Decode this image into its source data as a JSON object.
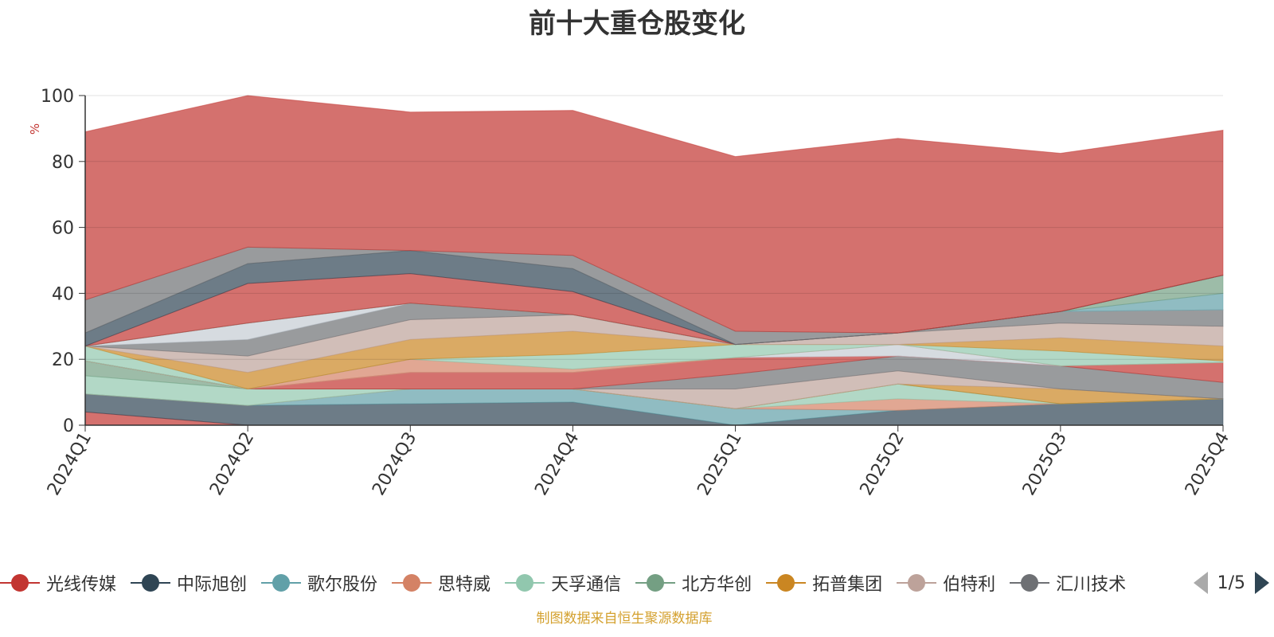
{
  "title": "前十大重仓股变化",
  "source_note": "制图数据来自恒生聚源数据库",
  "pager": {
    "text": "1/5"
  },
  "chart_data": {
    "type": "area",
    "stacked": true,
    "ylabel": "%",
    "ylim": [
      0,
      100
    ],
    "yticks": [
      "0",
      "20",
      "40",
      "60",
      "80",
      "100"
    ],
    "grid": true,
    "legend_position": "bottom",
    "categories": [
      "2024Q1",
      "2024Q2",
      "2024Q3",
      "2024Q4",
      "2025Q1",
      "2025Q2",
      "2025Q3",
      "2025Q4"
    ],
    "series": [
      {
        "name": "光线传媒",
        "color": "#c23531",
        "values": [
          4,
          0,
          0,
          0,
          0,
          0,
          0,
          0
        ]
      },
      {
        "name": "中际旭创",
        "color": "#2f4554",
        "values": [
          5.5,
          6,
          6.5,
          7,
          0,
          4.5,
          6.5,
          8
        ]
      },
      {
        "name": "歌尔股份",
        "color": "#61a0a8",
        "values": [
          0,
          0,
          4.5,
          4,
          5,
          0,
          0,
          0
        ]
      },
      {
        "name": "思特威",
        "color": "#d48265",
        "values": [
          0,
          0,
          0,
          0,
          0,
          3.5,
          0,
          0
        ]
      },
      {
        "name": "天孚通信",
        "color": "#91c7ae",
        "values": [
          5.5,
          5,
          0,
          0,
          0,
          4.5,
          0,
          0
        ]
      },
      {
        "name": "北方华创",
        "color": "#749f83",
        "values": [
          4.5,
          0,
          0,
          0,
          0,
          0,
          0,
          0
        ]
      },
      {
        "name": "拓普集团",
        "color": "#ca8622",
        "values": [
          0,
          0,
          0,
          0,
          0,
          0,
          4.5,
          0
        ]
      },
      {
        "name": "伯特利",
        "color": "#bda29a",
        "values": [
          0,
          0,
          0,
          0,
          6,
          4,
          0,
          0
        ]
      },
      {
        "name": "汇川技术",
        "color": "#6e7074",
        "values": [
          0,
          0,
          0,
          0,
          4.5,
          4.5,
          7,
          5
        ]
      },
      {
        "name": "",
        "color": "#c23531",
        "values": [
          0,
          0,
          5,
          5,
          5,
          0,
          0,
          6
        ]
      },
      {
        "name": "",
        "color": "#c4ccd3",
        "values": [
          0,
          0,
          0,
          0,
          0,
          3.5,
          0,
          0
        ]
      },
      {
        "name": "",
        "color": "#d48265",
        "values": [
          0,
          0,
          4,
          1,
          0,
          0,
          0,
          0
        ]
      },
      {
        "name": "",
        "color": "#91c7ae",
        "values": [
          4.5,
          0,
          0,
          4.5,
          4,
          0,
          4.5,
          0.5
        ]
      },
      {
        "name": "",
        "color": "#ca8622",
        "values": [
          0,
          5,
          6,
          7,
          0,
          0,
          4,
          4.5
        ]
      },
      {
        "name": "",
        "color": "#bda29a",
        "values": [
          0,
          5,
          6,
          5,
          0,
          3.5,
          4.5,
          6
        ]
      },
      {
        "name": "",
        "color": "#6e7074",
        "values": [
          0,
          5,
          5,
          0,
          0,
          0,
          3.5,
          5
        ]
      },
      {
        "name": "",
        "color": "#c4ccd3",
        "values": [
          0,
          5,
          0,
          0,
          0,
          0,
          0,
          0
        ]
      },
      {
        "name": "",
        "color": "#61a0a8",
        "values": [
          0,
          0,
          0,
          0,
          0,
          0,
          0,
          5
        ]
      },
      {
        "name": "",
        "color": "#749f83",
        "values": [
          0,
          0,
          0,
          0,
          0,
          0,
          0,
          5.5
        ]
      },
      {
        "name": "",
        "color": "#c23531",
        "values": [
          0,
          12,
          9,
          7,
          0,
          0,
          0,
          0
        ]
      },
      {
        "name": "",
        "color": "#2f4554",
        "values": [
          4,
          6,
          7,
          7,
          0,
          0,
          0,
          0
        ]
      },
      {
        "name": "",
        "color": "#6e7074",
        "values": [
          10,
          5,
          0,
          4,
          4,
          0,
          0,
          0
        ]
      },
      {
        "name": "",
        "color": "#c23531",
        "values": [
          51,
          46,
          42,
          44,
          53,
          59,
          48,
          44
        ]
      }
    ]
  }
}
